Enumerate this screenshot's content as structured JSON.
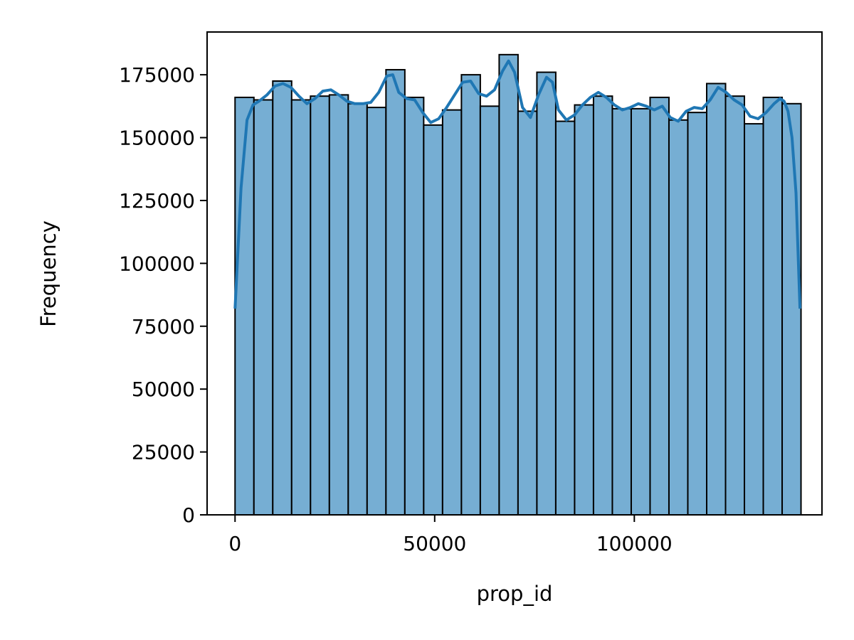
{
  "chart_data": {
    "type": "bar",
    "title": "",
    "xlabel": "prop_id",
    "ylabel": "Frequency",
    "xlim": [
      -7000,
      147000
    ],
    "ylim": [
      0,
      192000
    ],
    "bin_start": 0,
    "bin_width": 4725,
    "values": [
      166000,
      165000,
      172500,
      165000,
      166500,
      167000,
      163500,
      162000,
      177000,
      166000,
      155000,
      161000,
      175000,
      162500,
      183000,
      160500,
      176000,
      156500,
      163000,
      166500,
      161500,
      161500,
      166000,
      157000,
      160000,
      171500,
      166500,
      155500,
      166000,
      163500
    ],
    "kde": {
      "x": [
        0,
        1500,
        3000,
        4500,
        6000,
        8000,
        10000,
        12000,
        14000,
        16000,
        18000,
        20000,
        22000,
        24000,
        26000,
        28000,
        30000,
        32000,
        34000,
        36000,
        38000,
        39500,
        41000,
        43000,
        45000,
        47000,
        49000,
        51000,
        53000,
        55000,
        57000,
        59000,
        61000,
        63000,
        65000,
        67000,
        68500,
        70000,
        72000,
        74000,
        76000,
        78000,
        79500,
        81000,
        83000,
        85000,
        87000,
        89000,
        91000,
        93000,
        95000,
        97000,
        99000,
        101000,
        103000,
        105000,
        107000,
        109000,
        111000,
        113000,
        115000,
        117000,
        119000,
        121000,
        123000,
        125000,
        127000,
        129000,
        131000,
        133000,
        135000,
        136500,
        137500,
        138500,
        139500,
        140500,
        141500
      ],
      "y": [
        82000,
        130000,
        157000,
        163000,
        164500,
        167000,
        170500,
        171500,
        170000,
        166500,
        163500,
        165500,
        168500,
        169000,
        167000,
        164500,
        163500,
        163500,
        164000,
        168000,
        174500,
        175000,
        168000,
        165500,
        165000,
        160000,
        156000,
        157500,
        162000,
        167000,
        172000,
        172500,
        167500,
        166500,
        169000,
        176500,
        180500,
        176000,
        162000,
        158000,
        167000,
        174000,
        172000,
        161000,
        157000,
        159000,
        163000,
        166000,
        168000,
        166000,
        163000,
        161000,
        162000,
        163500,
        162500,
        161000,
        162500,
        158000,
        156500,
        160500,
        162000,
        161500,
        165000,
        170000,
        168000,
        165000,
        163000,
        158500,
        157500,
        160000,
        163500,
        165500,
        164500,
        160500,
        150000,
        128000,
        82000
      ]
    },
    "xticks": [
      0,
      50000,
      100000
    ],
    "xtick_labels": [
      "0",
      "50000",
      "100000"
    ],
    "yticks": [
      0,
      25000,
      50000,
      75000,
      100000,
      125000,
      150000,
      175000
    ],
    "ytick_labels": [
      "0",
      "25000",
      "50000",
      "75000",
      "100000",
      "125000",
      "150000",
      "175000"
    ],
    "grid": false,
    "colors": {
      "bar_fill": "#76aed3",
      "bar_edge": "#000000",
      "kde_line": "#1f77b4",
      "axes": "#000000"
    }
  }
}
